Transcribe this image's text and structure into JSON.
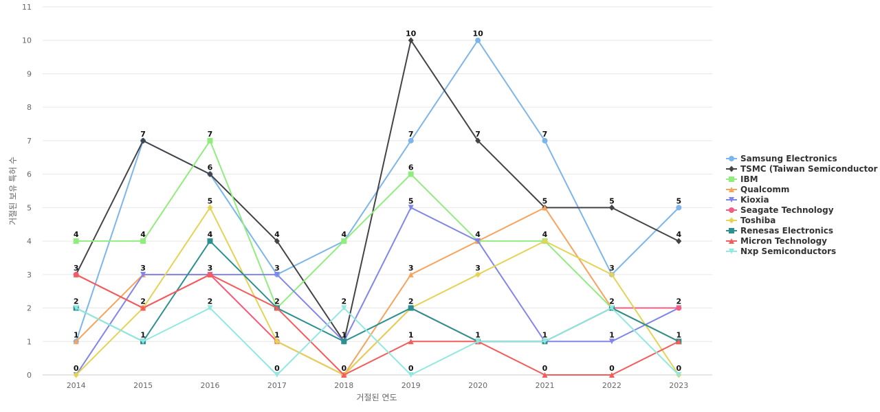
{
  "chart_data": {
    "type": "line",
    "title": "",
    "xlabel": "거절된 연도",
    "ylabel": "거절된 보유 특허 수",
    "x": [
      "2014",
      "2015",
      "2016",
      "2017",
      "2018",
      "2019",
      "2020",
      "2021",
      "2022",
      "2023"
    ],
    "ylim": [
      0,
      11
    ],
    "y_ticks": [
      0,
      1,
      2,
      3,
      4,
      5,
      6,
      7,
      8,
      9,
      10,
      11
    ],
    "grid": true,
    "legend_position": "right",
    "series": [
      {
        "name": "Samsung Electronics",
        "color": "#7cb5ec",
        "marker": "circle",
        "values": [
          1,
          7,
          6,
          3,
          4,
          7,
          10,
          7,
          3,
          5
        ]
      },
      {
        "name": "TSMC (Taiwan Semiconductor ...",
        "color": "#434348",
        "marker": "diamond",
        "values": [
          3,
          7,
          6,
          4,
          1,
          10,
          7,
          5,
          5,
          4
        ]
      },
      {
        "name": "IBM",
        "color": "#90ed7d",
        "marker": "square",
        "values": [
          4,
          4,
          7,
          2,
          4,
          6,
          4,
          4,
          2,
          1
        ]
      },
      {
        "name": "Qualcomm",
        "color": "#f7a35c",
        "marker": "triangle",
        "values": [
          1,
          3,
          3,
          1,
          0,
          3,
          4,
          5,
          2,
          1
        ]
      },
      {
        "name": "Kioxia",
        "color": "#8085e9",
        "marker": "triangle-down",
        "values": [
          0,
          3,
          3,
          3,
          1,
          5,
          4,
          1,
          1,
          2
        ]
      },
      {
        "name": "Seagate Technology",
        "color": "#f15c80",
        "marker": "circle",
        "values": [
          3,
          2,
          3,
          1,
          0,
          2,
          1,
          1,
          2,
          2
        ]
      },
      {
        "name": "Toshiba",
        "color": "#e4d354",
        "marker": "diamond",
        "values": [
          0,
          2,
          5,
          1,
          0,
          2,
          3,
          4,
          3,
          0
        ]
      },
      {
        "name": "Renesas Electronics",
        "color": "#2b908f",
        "marker": "square",
        "values": [
          2,
          1,
          4,
          2,
          1,
          2,
          1,
          1,
          2,
          1
        ]
      },
      {
        "name": "Micron Technology",
        "color": "#f45b5b",
        "marker": "triangle",
        "values": [
          3,
          2,
          3,
          2,
          0,
          1,
          1,
          0,
          0,
          1
        ]
      },
      {
        "name": "Nxp Semiconductors",
        "color": "#91e8e1",
        "marker": "triangle-down",
        "values": [
          2,
          1,
          2,
          0,
          2,
          0,
          1,
          1,
          2,
          0
        ]
      }
    ],
    "data_labels": [
      {
        "x": "2014",
        "value": 4
      },
      {
        "x": "2014",
        "value": 3
      },
      {
        "x": "2014",
        "value": 2
      },
      {
        "x": "2014",
        "value": 1
      },
      {
        "x": "2014",
        "value": 0
      },
      {
        "x": "2015",
        "value": 7
      },
      {
        "x": "2015",
        "value": 4
      },
      {
        "x": "2015",
        "value": 3
      },
      {
        "x": "2015",
        "value": 2
      },
      {
        "x": "2015",
        "value": 1
      },
      {
        "x": "2016",
        "value": 7
      },
      {
        "x": "2016",
        "value": 6
      },
      {
        "x": "2016",
        "value": 5
      },
      {
        "x": "2016",
        "value": 4
      },
      {
        "x": "2016",
        "value": 3
      },
      {
        "x": "2016",
        "value": 2
      },
      {
        "x": "2017",
        "value": 4
      },
      {
        "x": "2017",
        "value": 3
      },
      {
        "x": "2017",
        "value": 2
      },
      {
        "x": "2017",
        "value": 1
      },
      {
        "x": "2017",
        "value": 0
      },
      {
        "x": "2018",
        "value": 4
      },
      {
        "x": "2018",
        "value": 2
      },
      {
        "x": "2018",
        "value": 1
      },
      {
        "x": "2018",
        "value": 0
      },
      {
        "x": "2019",
        "value": 10
      },
      {
        "x": "2019",
        "value": 7
      },
      {
        "x": "2019",
        "value": 6
      },
      {
        "x": "2019",
        "value": 5
      },
      {
        "x": "2019",
        "value": 3
      },
      {
        "x": "2019",
        "value": 2
      },
      {
        "x": "2019",
        "value": 1
      },
      {
        "x": "2019",
        "value": 0
      },
      {
        "x": "2020",
        "value": 10
      },
      {
        "x": "2020",
        "value": 7
      },
      {
        "x": "2020",
        "value": 4
      },
      {
        "x": "2020",
        "value": 3
      },
      {
        "x": "2020",
        "value": 1
      },
      {
        "x": "2021",
        "value": 7
      },
      {
        "x": "2021",
        "value": 5
      },
      {
        "x": "2021",
        "value": 4
      },
      {
        "x": "2021",
        "value": 1
      },
      {
        "x": "2021",
        "value": 0
      },
      {
        "x": "2022",
        "value": 5
      },
      {
        "x": "2022",
        "value": 3
      },
      {
        "x": "2022",
        "value": 2
      },
      {
        "x": "2022",
        "value": 1
      },
      {
        "x": "2022",
        "value": 0
      },
      {
        "x": "2023",
        "value": 5
      },
      {
        "x": "2023",
        "value": 4
      },
      {
        "x": "2023",
        "value": 2
      },
      {
        "x": "2023",
        "value": 1
      },
      {
        "x": "2023",
        "value": 0
      }
    ]
  }
}
